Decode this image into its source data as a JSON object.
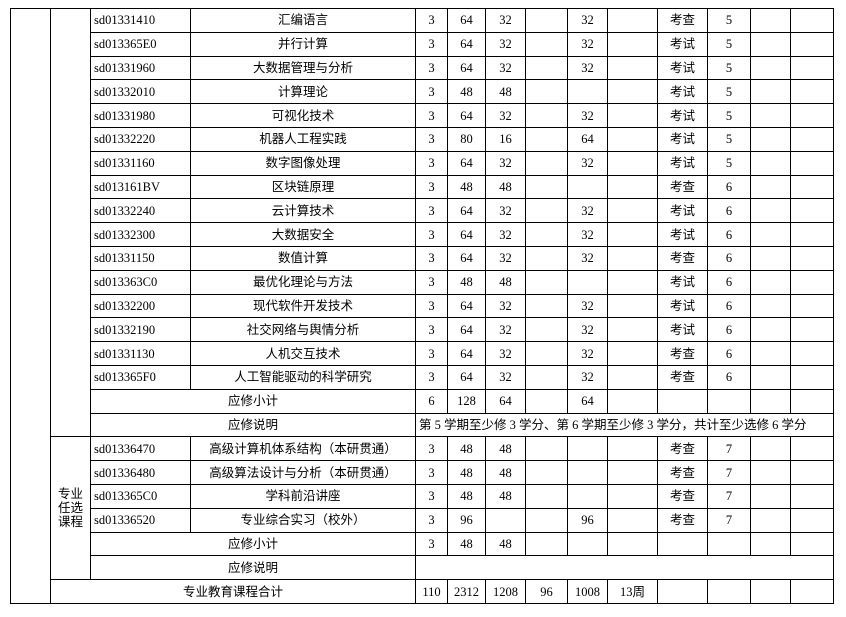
{
  "blocks": [
    {
      "courses": [
        [
          "sd01331410",
          "汇编语言",
          3,
          64,
          32,
          null,
          32,
          null,
          "考查",
          5
        ],
        [
          "sd013365E0",
          "并行计算",
          3,
          64,
          32,
          null,
          32,
          null,
          "考试",
          5
        ],
        [
          "sd01331960",
          "大数据管理与分析",
          3,
          64,
          32,
          null,
          32,
          null,
          "考试",
          5
        ],
        [
          "sd01332010",
          "计算理论",
          3,
          48,
          48,
          null,
          null,
          null,
          "考试",
          5
        ],
        [
          "sd01331980",
          "可视化技术",
          3,
          64,
          32,
          null,
          32,
          null,
          "考试",
          5
        ],
        [
          "sd01332220",
          "机器人工程实践",
          3,
          80,
          16,
          null,
          64,
          null,
          "考试",
          5
        ],
        [
          "sd01331160",
          "数字图像处理",
          3,
          64,
          32,
          null,
          32,
          null,
          "考试",
          5
        ],
        [
          "sd013161BV",
          "区块链原理",
          3,
          48,
          48,
          null,
          null,
          null,
          "考查",
          6
        ],
        [
          "sd01332240",
          "云计算技术",
          3,
          64,
          32,
          null,
          32,
          null,
          "考试",
          6
        ],
        [
          "sd01332300",
          "大数据安全",
          3,
          64,
          32,
          null,
          32,
          null,
          "考试",
          6
        ],
        [
          "sd01331150",
          "数值计算",
          3,
          64,
          32,
          null,
          32,
          null,
          "考查",
          6
        ],
        [
          "sd013363C0",
          "最优化理论与方法",
          3,
          48,
          48,
          null,
          null,
          null,
          "考试",
          6
        ],
        [
          "sd01332200",
          "现代软件开发技术",
          3,
          64,
          32,
          null,
          32,
          null,
          "考试",
          6
        ],
        [
          "sd01332190",
          "社交网络与舆情分析",
          3,
          64,
          32,
          null,
          32,
          null,
          "考试",
          6
        ],
        [
          "sd01331130",
          "人机交互技术",
          3,
          64,
          32,
          null,
          32,
          null,
          "考查",
          6
        ],
        [
          "sd013365F0",
          "人工智能驱动的科学研究",
          3,
          64,
          32,
          null,
          32,
          null,
          "考查",
          6
        ]
      ],
      "subtotal": {
        "label": "应修小计",
        "values": [
          6,
          128,
          64,
          null,
          64
        ]
      },
      "note": {
        "label": "应修说明",
        "text": "第 5 学期至少修 3 学分、第 6 学期至少修 3 学分，共计至少选修 6 学分"
      }
    },
    {
      "label": "专业任选课程",
      "courses": [
        [
          "sd01336470",
          "高级计算机体系结构（本研贯通）",
          3,
          48,
          48,
          null,
          null,
          null,
          "考查",
          7
        ],
        [
          "sd01336480",
          "高级算法设计与分析（本研贯通）",
          3,
          48,
          48,
          null,
          null,
          null,
          "考查",
          7
        ],
        [
          "sd013365C0",
          "学科前沿讲座",
          3,
          48,
          48,
          null,
          null,
          null,
          "考查",
          7
        ],
        [
          "sd01336520",
          "专业综合实习（校外）",
          3,
          96,
          null,
          null,
          96,
          null,
          "考查",
          7
        ]
      ],
      "subtotal": {
        "label": "应修小计",
        "values": [
          3,
          48,
          48
        ]
      },
      "note": {
        "label": "应修说明"
      }
    }
  ],
  "total": {
    "label": "专业教育课程合计",
    "values": [
      110,
      2312,
      1208,
      96,
      1008,
      "13周"
    ]
  }
}
